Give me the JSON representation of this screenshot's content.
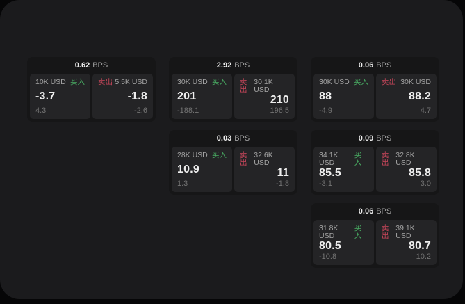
{
  "theme": {
    "page_bg": "#060607",
    "panel_bg": "#1b1b1d",
    "card_bg": "#161617",
    "tile_bg": "#242426",
    "text_primary": "#eeeeee",
    "text_secondary": "#a3a3a3",
    "text_muted": "#747474",
    "buy_color": "#49ad63",
    "sell_color": "#c8465a"
  },
  "labels": {
    "bps_unit": "BPS",
    "buy": "买入",
    "sell": "卖出"
  },
  "cards": [
    {
      "bps": "0.62",
      "row": 1,
      "col": 1,
      "buy": {
        "amount": "10K USD",
        "price": "-3.7",
        "delta": "4.3"
      },
      "sell": {
        "amount": "5.5K USD",
        "price": "-1.8",
        "delta": "-2.6"
      }
    },
    {
      "bps": "2.92",
      "row": 1,
      "col": 2,
      "buy": {
        "amount": "30K USD",
        "price": "201",
        "delta": "-188.1"
      },
      "sell": {
        "amount": "30.1K USD",
        "price": "210",
        "delta": "196.5"
      }
    },
    {
      "bps": "0.06",
      "row": 1,
      "col": 3,
      "buy": {
        "amount": "30K USD",
        "price": "88",
        "delta": "-4.9"
      },
      "sell": {
        "amount": "30K USD",
        "price": "88.2",
        "delta": "4.7"
      }
    },
    {
      "bps": "0.03",
      "row": 2,
      "col": 2,
      "buy": {
        "amount": "28K USD",
        "price": "10.9",
        "delta": "1.3"
      },
      "sell": {
        "amount": "32.6K USD",
        "price": "11",
        "delta": "-1.8"
      }
    },
    {
      "bps": "0.09",
      "row": 2,
      "col": 3,
      "buy": {
        "amount": "34.1K USD",
        "price": "85.5",
        "delta": "-3.1"
      },
      "sell": {
        "amount": "32.8K USD",
        "price": "85.8",
        "delta": "3.0"
      }
    },
    {
      "bps": "0.06",
      "row": 3,
      "col": 3,
      "buy": {
        "amount": "31.8K USD",
        "price": "80.5",
        "delta": "-10.8"
      },
      "sell": {
        "amount": "39.1K USD",
        "price": "80.7",
        "delta": "10.2"
      }
    }
  ]
}
